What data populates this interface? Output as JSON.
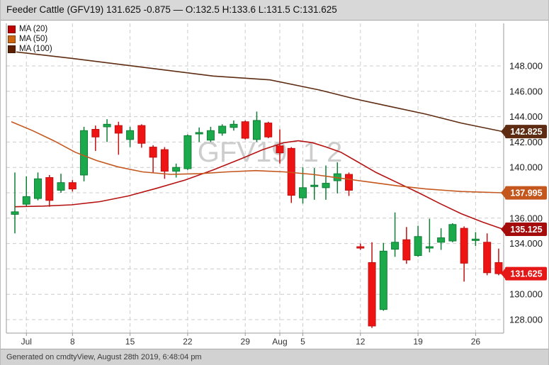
{
  "header": {
    "title": "Feeder Cattle (GFV19) 131.625 -0.875 — O:132.5 H:133.6 L:131.5 C:131.625"
  },
  "footer": {
    "text": "Generated on cmdtyView, August 28th 2019, 6:48:04 pm"
  },
  "watermark": "GFV19, 1 2",
  "legend": {
    "items": [
      {
        "id": "ma-20",
        "label": "MA (20)",
        "color": "#c00000"
      },
      {
        "id": "ma-50",
        "label": "MA (50)",
        "color": "#cc6611"
      },
      {
        "id": "ma-100",
        "label": "MA (100)",
        "color": "#5e1f00"
      }
    ]
  },
  "colors": {
    "candle_up": "#1ca94c",
    "candle_up_border": "#0e7e35",
    "candle_down": "#ee1414",
    "candle_down_border": "#c01010",
    "gridline": "#cccccc",
    "frame": "#999999",
    "axis_text": "#1a1a1a",
    "watermark_text": "#cdcdcd"
  },
  "chart_data": {
    "type": "candlestick",
    "title": "Feeder Cattle (GFV19)",
    "symbol": "GFV19",
    "last": 131.625,
    "change": -0.875,
    "session_ohlc": {
      "open": 132.5,
      "high": 133.6,
      "low": 131.5,
      "close": 131.625
    },
    "y_axis": {
      "min": 127.0,
      "max": 151.3,
      "grid": true,
      "gridline_prices": [
        148,
        146,
        144,
        142,
        140,
        138,
        136,
        134,
        132,
        130,
        128
      ],
      "tick_labels": [
        {
          "price": 148,
          "label": "148.000"
        },
        {
          "price": 146,
          "label": "146.000"
        },
        {
          "price": 144,
          "label": "144.000"
        },
        {
          "price": 142,
          "label": "142.000"
        },
        {
          "price": 140,
          "label": "140.000"
        },
        {
          "price": 136,
          "label": "136.000"
        },
        {
          "price": 134,
          "label": "134.000"
        },
        {
          "price": 130,
          "label": "130.000"
        },
        {
          "price": 128,
          "label": "128.000"
        }
      ]
    },
    "x_axis": {
      "labels": [
        {
          "label": "Jul",
          "index": 1
        },
        {
          "label": "8",
          "index": 5
        },
        {
          "label": "15",
          "index": 10
        },
        {
          "label": "22",
          "index": 15
        },
        {
          "label": "29",
          "index": 20
        },
        {
          "label": "Aug",
          "index": 23
        },
        {
          "label": "5",
          "index": 25
        },
        {
          "label": "12",
          "index": 30
        },
        {
          "label": "19",
          "index": 35
        },
        {
          "label": "26",
          "index": 40
        }
      ]
    },
    "candles_format": [
      "open",
      "high",
      "low",
      "close"
    ],
    "candles": [
      [
        136.3,
        139.6,
        134.8,
        136.5
      ],
      [
        137.1,
        139.3,
        136.9,
        137.7
      ],
      [
        137.55,
        139.6,
        137.4,
        139.1
      ],
      [
        139.2,
        139.4,
        136.9,
        137.4
      ],
      [
        138.2,
        139.5,
        138.0,
        138.8
      ],
      [
        138.8,
        139.0,
        138.1,
        138.3
      ],
      [
        139.4,
        143.2,
        138.9,
        142.9
      ],
      [
        143.0,
        143.3,
        141.3,
        142.4
      ],
      [
        143.2,
        143.8,
        142.0,
        143.4
      ],
      [
        143.3,
        143.6,
        141.0,
        142.7
      ],
      [
        142.2,
        143.2,
        141.6,
        142.9
      ],
      [
        143.3,
        143.4,
        141.55,
        141.9
      ],
      [
        141.6,
        141.75,
        139.6,
        140.8
      ],
      [
        141.4,
        141.6,
        139.1,
        139.7
      ],
      [
        139.7,
        140.3,
        139.2,
        140.0
      ],
      [
        139.9,
        142.6,
        139.8,
        142.5
      ],
      [
        142.65,
        143.15,
        142.0,
        142.75
      ],
      [
        142.15,
        143.2,
        142.0,
        142.9
      ],
      [
        142.7,
        143.4,
        142.5,
        143.25
      ],
      [
        143.15,
        143.7,
        142.9,
        143.4
      ],
      [
        143.6,
        143.7,
        142.2,
        142.3
      ],
      [
        142.2,
        144.4,
        142.0,
        143.7
      ],
      [
        143.5,
        143.6,
        142.3,
        142.4
      ],
      [
        141.7,
        143.0,
        140.3,
        141.15
      ],
      [
        141.5,
        141.6,
        137.2,
        137.8
      ],
      [
        137.6,
        140.0,
        137.15,
        138.4
      ],
      [
        138.5,
        139.95,
        137.45,
        138.6
      ],
      [
        138.4,
        140.15,
        137.45,
        138.75
      ],
      [
        138.95,
        140.4,
        137.95,
        139.5
      ],
      [
        139.45,
        139.6,
        137.75,
        138.2
      ],
      [
        133.75,
        134.0,
        133.5,
        133.7
      ],
      [
        132.5,
        134.1,
        127.35,
        127.5
      ],
      [
        128.8,
        134.05,
        128.7,
        133.4
      ],
      [
        133.55,
        136.45,
        132.95,
        134.1
      ],
      [
        134.3,
        135.3,
        132.4,
        132.7
      ],
      [
        133.05,
        135.4,
        132.95,
        134.55
      ],
      [
        133.65,
        135.95,
        133.3,
        133.75
      ],
      [
        134.1,
        135.2,
        133.5,
        134.45
      ],
      [
        134.2,
        135.6,
        134.1,
        135.5
      ],
      [
        135.2,
        135.35,
        131.0,
        132.45
      ],
      [
        134.25,
        134.9,
        133.8,
        134.35
      ],
      [
        134.1,
        134.8,
        131.5,
        131.7
      ],
      [
        132.5,
        133.6,
        131.5,
        131.625
      ]
    ],
    "moving_averages": [
      {
        "name": "MA (20)",
        "color": "#b61212",
        "points": [
          [
            20,
            136.9
          ],
          [
            60,
            136.95
          ],
          [
            100,
            137.05
          ],
          [
            140,
            137.3
          ],
          [
            180,
            137.75
          ],
          [
            220,
            138.35
          ],
          [
            260,
            139.0
          ],
          [
            300,
            139.8
          ],
          [
            340,
            140.7
          ],
          [
            370,
            141.4
          ],
          [
            400,
            141.95
          ],
          [
            420,
            142.1
          ],
          [
            440,
            141.95
          ],
          [
            460,
            141.6
          ],
          [
            480,
            141.2
          ],
          [
            505,
            140.4
          ],
          [
            530,
            139.6
          ],
          [
            560,
            138.8
          ],
          [
            590,
            138.0
          ],
          [
            620,
            137.15
          ],
          [
            650,
            136.35
          ],
          [
            680,
            135.7
          ],
          [
            708,
            135.15
          ]
        ]
      },
      {
        "name": "MA (50)",
        "color": "#c4571e",
        "points": [
          [
            15,
            143.6
          ],
          [
            45,
            142.9
          ],
          [
            75,
            142.1
          ],
          [
            105,
            141.2
          ],
          [
            135,
            140.55
          ],
          [
            165,
            140.05
          ],
          [
            200,
            139.65
          ],
          [
            240,
            139.45
          ],
          [
            280,
            139.5
          ],
          [
            320,
            139.65
          ],
          [
            360,
            139.75
          ],
          [
            400,
            139.65
          ],
          [
            440,
            139.45
          ],
          [
            480,
            139.15
          ],
          [
            520,
            138.85
          ],
          [
            560,
            138.55
          ],
          [
            600,
            138.3
          ],
          [
            650,
            138.1
          ],
          [
            708,
            138.0
          ]
        ]
      },
      {
        "name": "MA (100)",
        "color": "#5e2c12",
        "points": [
          [
            22,
            149.1
          ],
          [
            100,
            148.6
          ],
          [
            200,
            147.9
          ],
          [
            300,
            147.2
          ],
          [
            380,
            146.9
          ],
          [
            450,
            146.1
          ],
          [
            500,
            145.4
          ],
          [
            550,
            144.8
          ],
          [
            600,
            144.2
          ],
          [
            650,
            143.5
          ],
          [
            708,
            142.83
          ]
        ]
      }
    ],
    "price_badges": [
      {
        "label": "142.825",
        "price": 142.825,
        "color": "#5e2c12"
      },
      {
        "label": "137.995",
        "price": 137.995,
        "color": "#c4571e"
      },
      {
        "label": "135.125",
        "price": 135.125,
        "color": "#a50d0d"
      },
      {
        "label": "131.625",
        "price": 131.625,
        "color": "#e51717"
      }
    ]
  }
}
